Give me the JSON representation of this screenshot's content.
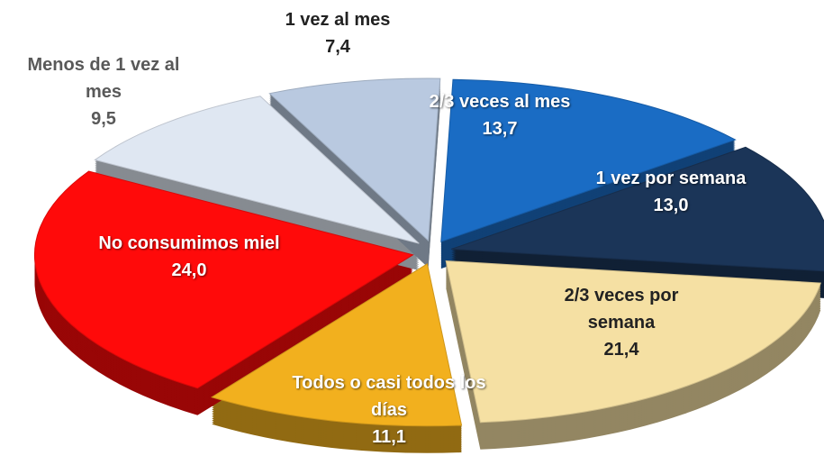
{
  "chart_data": {
    "type": "pie",
    "categories": [
      "2/3 veces al mes",
      "1 vez por semana",
      "2/3 veces por semana",
      "Todos o casi todos los días",
      "No consumimos miel",
      "Menos de 1 vez al mes",
      "1 vez al mes"
    ],
    "values": [
      13.7,
      13.0,
      21.4,
      11.1,
      24.0,
      9.5,
      7.4
    ],
    "value_labels": [
      "13,7",
      "13,0",
      "21,4",
      "11,1",
      "24,0",
      "9,5",
      "7,4"
    ],
    "colors": [
      "#1a6cc4",
      "#1b3558",
      "#f5e0a3",
      "#f2b01e",
      "#ff0a0a",
      "#dfe7f2",
      "#b9c9e0"
    ]
  }
}
